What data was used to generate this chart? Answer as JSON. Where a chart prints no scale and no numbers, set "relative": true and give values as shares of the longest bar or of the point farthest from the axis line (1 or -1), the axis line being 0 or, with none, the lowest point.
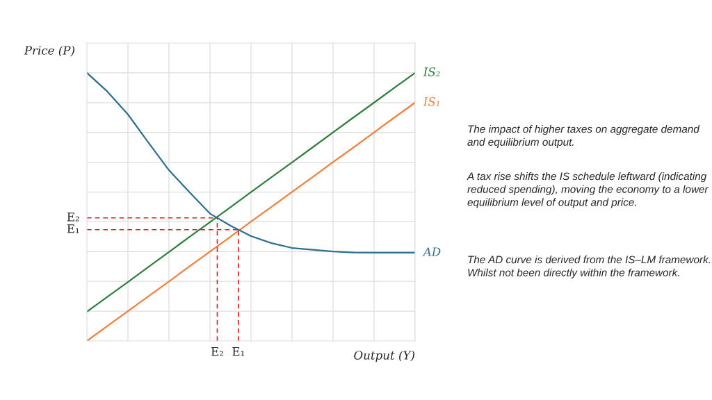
{
  "chart_data": {
    "type": "line",
    "relative": true,
    "xlabel": "Output (Y)",
    "ylabel": "Price (P)",
    "categories": [
      null,
      null,
      null,
      null,
      null,
      null,
      null,
      null,
      null,
      null,
      null,
      null,
      null,
      null,
      null,
      null,
      null
    ],
    "series": [
      {
        "name": "IS₂",
        "color": "#2e7d3a",
        "values": [
          0.109,
          0.165,
          0.22,
          0.276,
          0.332,
          0.388,
          0.443,
          0.499,
          0.555,
          0.611,
          0.666,
          0.722,
          0.778,
          0.834,
          0.889,
          0.945,
          1.0
        ]
      },
      {
        "name": "IS₁",
        "color": "#f07f3c",
        "values": [
          0,
          0.056,
          0.111,
          0.167,
          0.222,
          0.278,
          0.333,
          0.389,
          0.445,
          0.5,
          0.556,
          0.611,
          0.667,
          0.722,
          0.778,
          0.834,
          0.889
        ]
      },
      {
        "name": "AD",
        "color": "#2e6e8e",
        "values": [
          1.0,
          0.93,
          0.845,
          0.74,
          0.637,
          0.555,
          0.475,
          0.43,
          0.391,
          0.365,
          0.347,
          0.34,
          0.334,
          0.33,
          0.329,
          0.329,
          0.329
        ]
      }
    ],
    "ref_lines": [
      {
        "axis": "y",
        "value": 0.459,
        "label": "E₂",
        "color": "#e02020",
        "line_style": "dashed"
      },
      {
        "axis": "y",
        "value": 0.415,
        "label": "E₁",
        "color": "#e02020",
        "line_style": "dashed"
      }
    ],
    "grid": true,
    "legend": false,
    "marker": "none",
    "line_style": "solid",
    "annotations": [
      "The impact of higher taxes on aggregate demand and equilibrium output.",
      "A tax rise shifts the IS schedule leftward (indicating reduced spending), moving the economy to a lower equilibrium level of output and price.",
      "The AD curve is derived from the IS–LM framework. Whilst not been directly within the framework."
    ]
  }
}
